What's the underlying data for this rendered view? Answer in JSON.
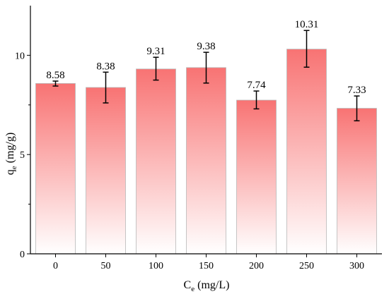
{
  "chart_data": {
    "type": "bar",
    "categories": [
      "0",
      "50",
      "100",
      "150",
      "200",
      "250",
      "300"
    ],
    "values": [
      8.58,
      8.38,
      9.31,
      9.38,
      7.74,
      10.31,
      7.33
    ],
    "data_labels": [
      "8.58",
      "8.38",
      "9.31",
      "9.38",
      "7.74",
      "10.31",
      "7.33"
    ],
    "error_low": [
      8.45,
      7.6,
      8.75,
      8.6,
      7.3,
      9.4,
      6.7
    ],
    "error_high": [
      8.7,
      9.15,
      9.9,
      10.15,
      8.2,
      11.25,
      7.95
    ],
    "xlabel": {
      "main": "C",
      "sub": "e",
      "unit": " (mg/L)"
    },
    "ylabel": {
      "main": "q",
      "sub": "e",
      "unit": " (mg/g)"
    },
    "ylim": [
      0,
      12.5
    ],
    "yticks": [
      0,
      5,
      10
    ],
    "grid": false,
    "bar_color_top": "#f87373",
    "bar_color_bottom": "#ffffff"
  }
}
